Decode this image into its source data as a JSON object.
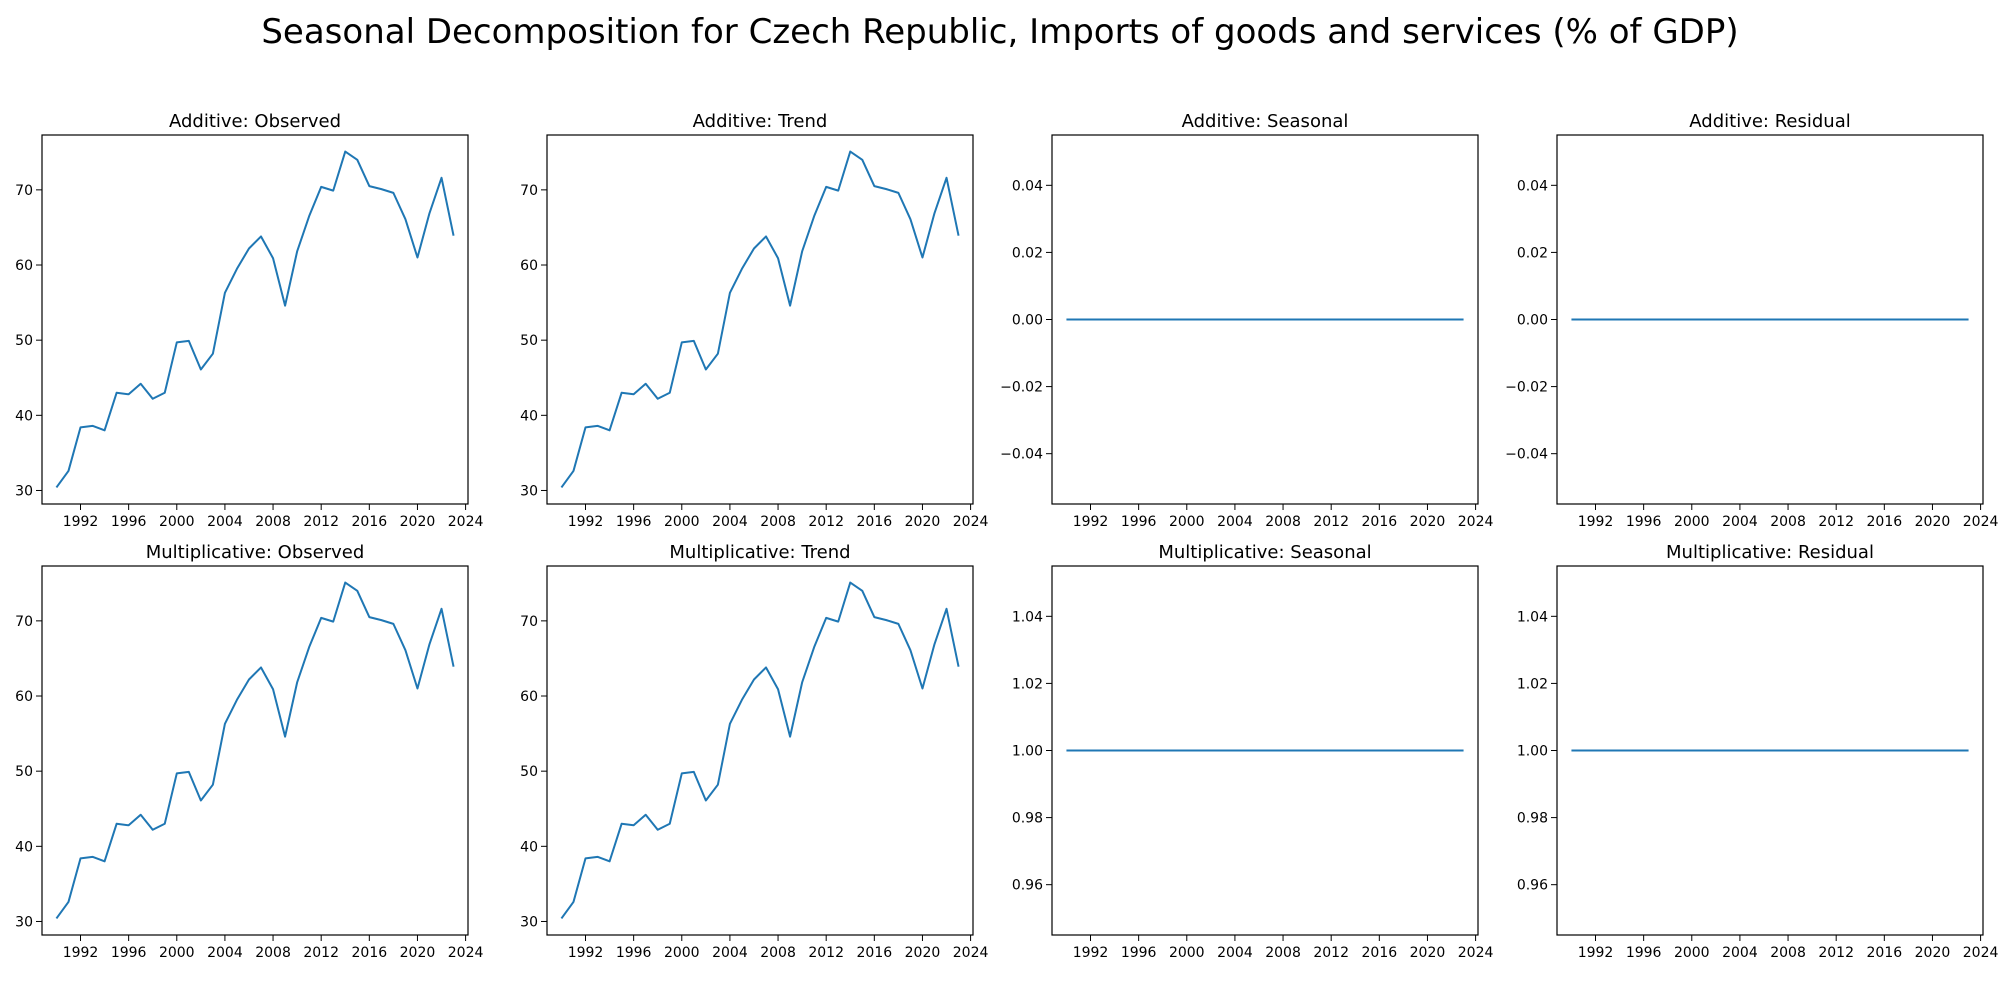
{
  "page": {
    "title": "Seasonal Decomposition for Czech Republic, Imports of goods and services (% of GDP)"
  },
  "colors": {
    "line": "#1f77b4",
    "axes": "#000000",
    "background": "#ffffff"
  },
  "chart_data": [
    {
      "type": "line",
      "title": "Additive: Observed",
      "x": [
        1990,
        1991,
        1992,
        1993,
        1994,
        1995,
        1996,
        1997,
        1998,
        1999,
        2000,
        2001,
        2002,
        2003,
        2004,
        2005,
        2006,
        2007,
        2008,
        2009,
        2010,
        2011,
        2012,
        2013,
        2014,
        2015,
        2016,
        2017,
        2018,
        2019,
        2020,
        2021,
        2022,
        2023
      ],
      "values": [
        30.4,
        32.6,
        38.4,
        38.6,
        38.0,
        43.0,
        42.8,
        44.2,
        42.2,
        43.0,
        49.7,
        49.9,
        46.1,
        48.2,
        56.3,
        59.5,
        62.2,
        63.8,
        60.9,
        54.6,
        61.8,
        66.5,
        70.4,
        69.9,
        75.1,
        74.0,
        70.5,
        70.1,
        69.6,
        66.1,
        61.0,
        66.9,
        71.6,
        63.9
      ],
      "xlim": [
        1988.8,
        2024.2
      ],
      "ylim": [
        28.2,
        77.3
      ],
      "xticks": [
        1992,
        1996,
        2000,
        2004,
        2008,
        2012,
        2016,
        2020,
        2024
      ],
      "yticks": [
        30,
        40,
        50,
        60,
        70
      ],
      "ytick_labels": [
        "30",
        "40",
        "50",
        "60",
        "70"
      ]
    },
    {
      "type": "line",
      "title": "Additive: Trend",
      "x": [
        1990,
        1991,
        1992,
        1993,
        1994,
        1995,
        1996,
        1997,
        1998,
        1999,
        2000,
        2001,
        2002,
        2003,
        2004,
        2005,
        2006,
        2007,
        2008,
        2009,
        2010,
        2011,
        2012,
        2013,
        2014,
        2015,
        2016,
        2017,
        2018,
        2019,
        2020,
        2021,
        2022,
        2023
      ],
      "values": [
        30.4,
        32.6,
        38.4,
        38.6,
        38.0,
        43.0,
        42.8,
        44.2,
        42.2,
        43.0,
        49.7,
        49.9,
        46.1,
        48.2,
        56.3,
        59.5,
        62.2,
        63.8,
        60.9,
        54.6,
        61.8,
        66.5,
        70.4,
        69.9,
        75.1,
        74.0,
        70.5,
        70.1,
        69.6,
        66.1,
        61.0,
        66.9,
        71.6,
        63.9
      ],
      "xlim": [
        1988.8,
        2024.2
      ],
      "ylim": [
        28.2,
        77.3
      ],
      "xticks": [
        1992,
        1996,
        2000,
        2004,
        2008,
        2012,
        2016,
        2020,
        2024
      ],
      "yticks": [
        30,
        40,
        50,
        60,
        70
      ],
      "ytick_labels": [
        "30",
        "40",
        "50",
        "60",
        "70"
      ]
    },
    {
      "type": "line",
      "title": "Additive: Seasonal",
      "x": [
        1990,
        1991,
        1992,
        1993,
        1994,
        1995,
        1996,
        1997,
        1998,
        1999,
        2000,
        2001,
        2002,
        2003,
        2004,
        2005,
        2006,
        2007,
        2008,
        2009,
        2010,
        2011,
        2012,
        2013,
        2014,
        2015,
        2016,
        2017,
        2018,
        2019,
        2020,
        2021,
        2022,
        2023
      ],
      "values": [
        0,
        0,
        0,
        0,
        0,
        0,
        0,
        0,
        0,
        0,
        0,
        0,
        0,
        0,
        0,
        0,
        0,
        0,
        0,
        0,
        0,
        0,
        0,
        0,
        0,
        0,
        0,
        0,
        0,
        0,
        0,
        0,
        0,
        0
      ],
      "xlim": [
        1988.8,
        2024.2
      ],
      "ylim": [
        -0.055,
        0.055
      ],
      "xticks": [
        1992,
        1996,
        2000,
        2004,
        2008,
        2012,
        2016,
        2020,
        2024
      ],
      "yticks": [
        -0.04,
        -0.02,
        0.0,
        0.02,
        0.04
      ],
      "ytick_labels": [
        "−0.04",
        "−0.02",
        "0.00",
        "0.02",
        "0.04"
      ]
    },
    {
      "type": "line",
      "title": "Additive: Residual",
      "x": [
        1990,
        1991,
        1992,
        1993,
        1994,
        1995,
        1996,
        1997,
        1998,
        1999,
        2000,
        2001,
        2002,
        2003,
        2004,
        2005,
        2006,
        2007,
        2008,
        2009,
        2010,
        2011,
        2012,
        2013,
        2014,
        2015,
        2016,
        2017,
        2018,
        2019,
        2020,
        2021,
        2022,
        2023
      ],
      "values": [
        0,
        0,
        0,
        0,
        0,
        0,
        0,
        0,
        0,
        0,
        0,
        0,
        0,
        0,
        0,
        0,
        0,
        0,
        0,
        0,
        0,
        0,
        0,
        0,
        0,
        0,
        0,
        0,
        0,
        0,
        0,
        0,
        0,
        0
      ],
      "xlim": [
        1988.8,
        2024.2
      ],
      "ylim": [
        -0.055,
        0.055
      ],
      "xticks": [
        1992,
        1996,
        2000,
        2004,
        2008,
        2012,
        2016,
        2020,
        2024
      ],
      "yticks": [
        -0.04,
        -0.02,
        0.0,
        0.02,
        0.04
      ],
      "ytick_labels": [
        "−0.04",
        "−0.02",
        "0.00",
        "0.02",
        "0.04"
      ]
    },
    {
      "type": "line",
      "title": "Multiplicative: Observed",
      "x": [
        1990,
        1991,
        1992,
        1993,
        1994,
        1995,
        1996,
        1997,
        1998,
        1999,
        2000,
        2001,
        2002,
        2003,
        2004,
        2005,
        2006,
        2007,
        2008,
        2009,
        2010,
        2011,
        2012,
        2013,
        2014,
        2015,
        2016,
        2017,
        2018,
        2019,
        2020,
        2021,
        2022,
        2023
      ],
      "values": [
        30.4,
        32.6,
        38.4,
        38.6,
        38.0,
        43.0,
        42.8,
        44.2,
        42.2,
        43.0,
        49.7,
        49.9,
        46.1,
        48.2,
        56.3,
        59.5,
        62.2,
        63.8,
        60.9,
        54.6,
        61.8,
        66.5,
        70.4,
        69.9,
        75.1,
        74.0,
        70.5,
        70.1,
        69.6,
        66.1,
        61.0,
        66.9,
        71.6,
        63.9
      ],
      "xlim": [
        1988.8,
        2024.2
      ],
      "ylim": [
        28.2,
        77.3
      ],
      "xticks": [
        1992,
        1996,
        2000,
        2004,
        2008,
        2012,
        2016,
        2020,
        2024
      ],
      "yticks": [
        30,
        40,
        50,
        60,
        70
      ],
      "ytick_labels": [
        "30",
        "40",
        "50",
        "60",
        "70"
      ]
    },
    {
      "type": "line",
      "title": "Multiplicative: Trend",
      "x": [
        1990,
        1991,
        1992,
        1993,
        1994,
        1995,
        1996,
        1997,
        1998,
        1999,
        2000,
        2001,
        2002,
        2003,
        2004,
        2005,
        2006,
        2007,
        2008,
        2009,
        2010,
        2011,
        2012,
        2013,
        2014,
        2015,
        2016,
        2017,
        2018,
        2019,
        2020,
        2021,
        2022,
        2023
      ],
      "values": [
        30.4,
        32.6,
        38.4,
        38.6,
        38.0,
        43.0,
        42.8,
        44.2,
        42.2,
        43.0,
        49.7,
        49.9,
        46.1,
        48.2,
        56.3,
        59.5,
        62.2,
        63.8,
        60.9,
        54.6,
        61.8,
        66.5,
        70.4,
        69.9,
        75.1,
        74.0,
        70.5,
        70.1,
        69.6,
        66.1,
        61.0,
        66.9,
        71.6,
        63.9
      ],
      "xlim": [
        1988.8,
        2024.2
      ],
      "ylim": [
        28.2,
        77.3
      ],
      "xticks": [
        1992,
        1996,
        2000,
        2004,
        2008,
        2012,
        2016,
        2020,
        2024
      ],
      "yticks": [
        30,
        40,
        50,
        60,
        70
      ],
      "ytick_labels": [
        "30",
        "40",
        "50",
        "60",
        "70"
      ]
    },
    {
      "type": "line",
      "title": "Multiplicative: Seasonal",
      "x": [
        1990,
        1991,
        1992,
        1993,
        1994,
        1995,
        1996,
        1997,
        1998,
        1999,
        2000,
        2001,
        2002,
        2003,
        2004,
        2005,
        2006,
        2007,
        2008,
        2009,
        2010,
        2011,
        2012,
        2013,
        2014,
        2015,
        2016,
        2017,
        2018,
        2019,
        2020,
        2021,
        2022,
        2023
      ],
      "values": [
        1,
        1,
        1,
        1,
        1,
        1,
        1,
        1,
        1,
        1,
        1,
        1,
        1,
        1,
        1,
        1,
        1,
        1,
        1,
        1,
        1,
        1,
        1,
        1,
        1,
        1,
        1,
        1,
        1,
        1,
        1,
        1,
        1,
        1
      ],
      "xlim": [
        1988.8,
        2024.2
      ],
      "ylim": [
        0.945,
        1.055
      ],
      "xticks": [
        1992,
        1996,
        2000,
        2004,
        2008,
        2012,
        2016,
        2020,
        2024
      ],
      "yticks": [
        0.96,
        0.98,
        1.0,
        1.02,
        1.04
      ],
      "ytick_labels": [
        "0.96",
        "0.98",
        "1.00",
        "1.02",
        "1.04"
      ]
    },
    {
      "type": "line",
      "title": "Multiplicative: Residual",
      "x": [
        1990,
        1991,
        1992,
        1993,
        1994,
        1995,
        1996,
        1997,
        1998,
        1999,
        2000,
        2001,
        2002,
        2003,
        2004,
        2005,
        2006,
        2007,
        2008,
        2009,
        2010,
        2011,
        2012,
        2013,
        2014,
        2015,
        2016,
        2017,
        2018,
        2019,
        2020,
        2021,
        2022,
        2023
      ],
      "values": [
        1,
        1,
        1,
        1,
        1,
        1,
        1,
        1,
        1,
        1,
        1,
        1,
        1,
        1,
        1,
        1,
        1,
        1,
        1,
        1,
        1,
        1,
        1,
        1,
        1,
        1,
        1,
        1,
        1,
        1,
        1,
        1,
        1,
        1
      ],
      "xlim": [
        1988.8,
        2024.2
      ],
      "ylim": [
        0.945,
        1.055
      ],
      "xticks": [
        1992,
        1996,
        2000,
        2004,
        2008,
        2012,
        2016,
        2020,
        2024
      ],
      "yticks": [
        0.96,
        0.98,
        1.0,
        1.02,
        1.04
      ],
      "ytick_labels": [
        "0.96",
        "0.98",
        "1.00",
        "1.02",
        "1.04"
      ]
    }
  ]
}
